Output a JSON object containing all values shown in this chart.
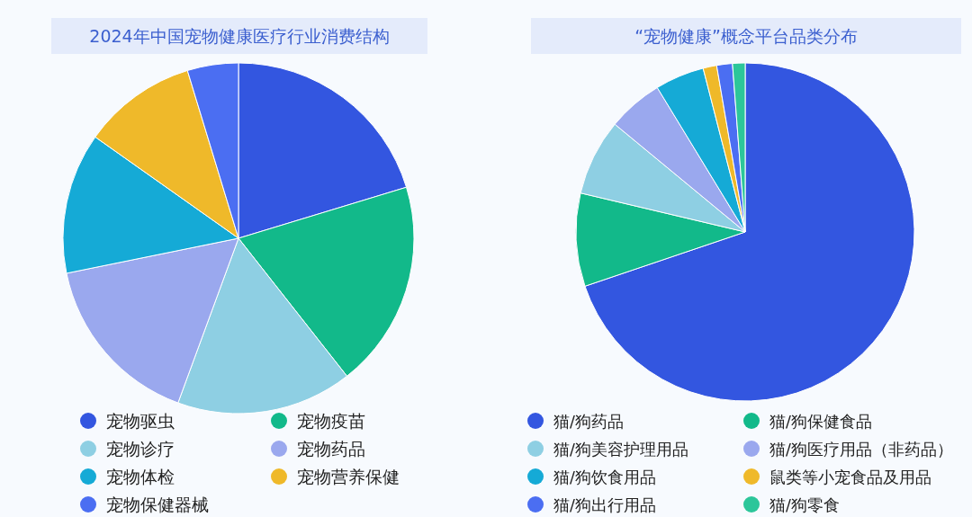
{
  "chart_data": [
    {
      "type": "pie",
      "title": "2024年中国宠物健康医疗行业消费结构",
      "legend": "bottom",
      "categories": [
        "宠物驱虫",
        "宠物疫苗",
        "宠物诊疗",
        "宠物药品",
        "宠物体检",
        "宠物营养保健",
        "宠物保健器械"
      ],
      "values": [
        20.3,
        19.1,
        16.2,
        16.2,
        13,
        10.5,
        4.7
      ],
      "colors": [
        "#3356e0",
        "#12b98a",
        "#8ecfe3",
        "#9aa8ee",
        "#15aad6",
        "#efb92a",
        "#4b6ef2"
      ]
    },
    {
      "type": "pie",
      "title": "“宠物健康”概念平台品类分布",
      "legend": "bottom",
      "categories": [
        "猫/狗药品",
        "猫/狗保健食品",
        "猫/狗美容护理用品",
        "猫/狗医疗用品（非药品）",
        "猫/狗饮食用品",
        "鼠类等小宠食品及用品",
        "猫/狗出行用品",
        "猫/狗零食"
      ],
      "values": [
        69.8,
        8.9,
        7.3,
        5.3,
        4.7,
        1.3,
        1.5,
        1.2
      ],
      "colors": [
        "#3356e0",
        "#12b98a",
        "#8ecfe3",
        "#9aa8ee",
        "#15aad6",
        "#efb92a",
        "#4b6ef2",
        "#2cc69a"
      ]
    }
  ]
}
